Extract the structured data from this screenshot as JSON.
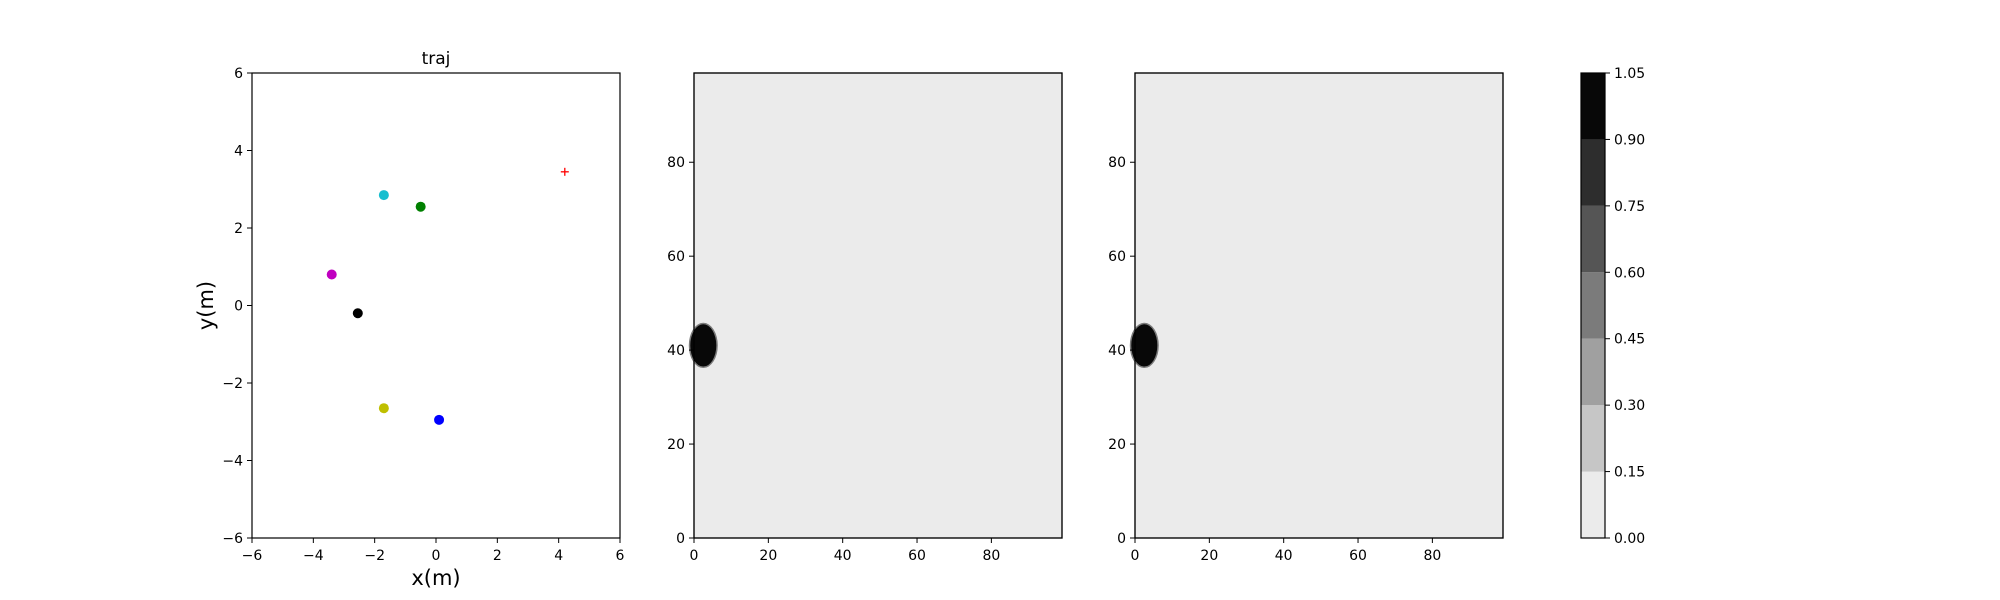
{
  "chart_data": [
    {
      "type": "scatter",
      "title": "traj",
      "xlabel": "x(m)",
      "ylabel": "y(m)",
      "xlim": [
        -6,
        6
      ],
      "ylim": [
        -6,
        6
      ],
      "xticks": [
        -6,
        -4,
        -2,
        0,
        2,
        4,
        6
      ],
      "yticks": [
        -6,
        -4,
        -2,
        0,
        2,
        4,
        6
      ],
      "xtick_labels": [
        "−6",
        "−4",
        "−2",
        "0",
        "2",
        "4",
        "6"
      ],
      "ytick_labels": [
        "−6",
        "−4",
        "−2",
        "0",
        "2",
        "4",
        "6"
      ],
      "grid": false,
      "points": [
        {
          "x": -1.7,
          "y": 2.85,
          "color": "#17becf",
          "marker": "circle"
        },
        {
          "x": -0.5,
          "y": 2.55,
          "color": "#008000",
          "marker": "circle"
        },
        {
          "x": -3.4,
          "y": 0.8,
          "color": "#c000c0",
          "marker": "circle"
        },
        {
          "x": -2.55,
          "y": -0.2,
          "color": "#000000",
          "marker": "circle"
        },
        {
          "x": -1.7,
          "y": -2.65,
          "color": "#bfbf00",
          "marker": "circle"
        },
        {
          "x": 0.1,
          "y": -2.95,
          "color": "#0000ff",
          "marker": "circle"
        },
        {
          "x": 4.2,
          "y": 3.45,
          "color": "#ff0000",
          "marker": "plus"
        }
      ]
    },
    {
      "type": "heatmap",
      "xlim": [
        0,
        99
      ],
      "ylim": [
        0,
        99
      ],
      "xticks": [
        0,
        20,
        40,
        60,
        80
      ],
      "yticks": [
        0,
        20,
        40,
        60,
        80
      ],
      "xtick_labels": [
        "0",
        "20",
        "40",
        "60",
        "80"
      ],
      "ytick_labels": [
        "0",
        "20",
        "40",
        "60",
        "80"
      ],
      "background_value": 0.0,
      "blob": {
        "x": 2.5,
        "y": 41,
        "rx": 3.5,
        "ry": 4.5,
        "value": 1.0
      }
    },
    {
      "type": "heatmap",
      "xlim": [
        0,
        99
      ],
      "ylim": [
        0,
        99
      ],
      "xticks": [
        0,
        20,
        40,
        60,
        80
      ],
      "yticks": [
        0,
        20,
        40,
        60,
        80
      ],
      "xtick_labels": [
        "0",
        "20",
        "40",
        "60",
        "80"
      ],
      "ytick_labels": [
        "0",
        "20",
        "40",
        "60",
        "80"
      ],
      "background_value": 0.0,
      "blob": {
        "x": 2.5,
        "y": 41,
        "rx": 3.5,
        "ry": 4.5,
        "value": 1.0
      }
    }
  ],
  "colorbar": {
    "range": [
      0.0,
      1.05
    ],
    "levels": [
      0.0,
      0.15,
      0.3,
      0.45,
      0.6,
      0.75,
      0.9,
      1.05
    ],
    "tick_labels": [
      "0.00",
      "0.15",
      "0.30",
      "0.45",
      "0.60",
      "0.75",
      "0.90",
      "1.05"
    ],
    "colors": [
      "#ebebeb",
      "#c6c6c6",
      "#a0a0a0",
      "#7b7b7b",
      "#555555",
      "#2d2d2d",
      "#080808"
    ]
  }
}
